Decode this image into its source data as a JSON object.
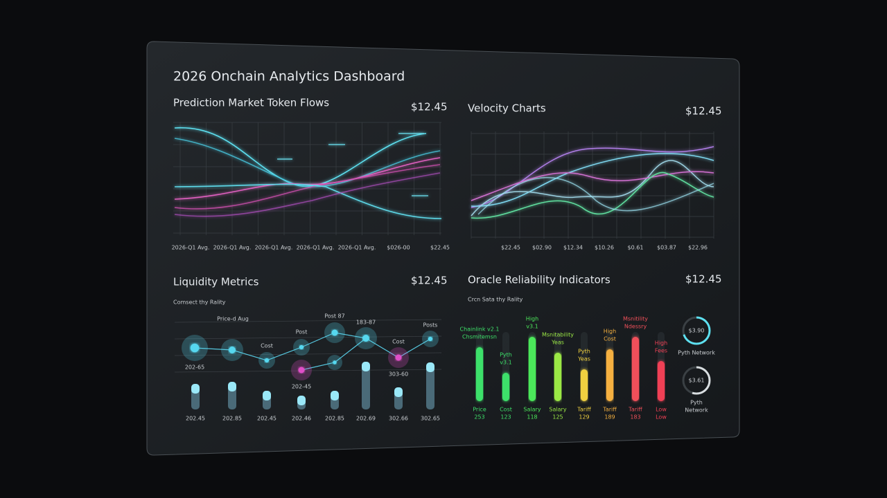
{
  "dashboard": {
    "title": "2026 Onchain Analytics Dashboard"
  },
  "flows": {
    "title": "Prediction Market Token Flows",
    "value": "$12.45",
    "x_labels": [
      "2026-Q1 Avg.",
      "2026-Q1 Avg.",
      "2026-Q1 Avg.",
      "2026-Q1 Avg.",
      "2026-Q1 Avg.",
      "$026-00",
      "$22.45"
    ]
  },
  "velocity": {
    "title": "Velocity Charts",
    "value": "$12.45",
    "x_labels": [
      "$22.45",
      "$02.90",
      "$12.34",
      "$10.26",
      "$0.61",
      "$03.87",
      "$22.96"
    ]
  },
  "liquidity": {
    "title": "Liquidity Metrics",
    "value": "$12.45",
    "subtitle": "Comsect thy Rality",
    "node_labels": [
      "Price-d Aug",
      "202-65",
      "Cost",
      "Post",
      "202-45",
      "Post 87",
      "183-87",
      "Cost",
      "303-60",
      "Posts"
    ],
    "bars": [
      {
        "label": "202.45",
        "level": 37
      },
      {
        "label": "202.85",
        "level": 40
      },
      {
        "label": "202.45",
        "level": 27
      },
      {
        "label": "202.46",
        "level": 20
      },
      {
        "label": "202.85",
        "level": 27
      },
      {
        "label": "202.69",
        "level": 69
      },
      {
        "label": "302.66",
        "level": 32
      },
      {
        "label": "302.65",
        "level": 68
      }
    ]
  },
  "oracle": {
    "title": "Oracle Reliability Indicators",
    "value": "$12.45",
    "subtitle": "Crcn Sata thy Rality",
    "bars": [
      {
        "top": [
          "Chainlink v2.1",
          "Chsmitemsn"
        ],
        "bottom": [
          "Price",
          "253"
        ],
        "level": 78,
        "color": "#3ee06a"
      },
      {
        "top": [
          "Pyth",
          "v3.1"
        ],
        "bottom": [
          "Cost",
          "123"
        ],
        "level": 41,
        "color": "#3ee06a"
      },
      {
        "top": [
          "High",
          "v3.1"
        ],
        "bottom": [
          "Salary",
          "118"
        ],
        "level": 93,
        "color": "#4be85a"
      },
      {
        "top": [
          "Msnitability",
          "Yeas"
        ],
        "bottom": [
          "Salary",
          "125"
        ],
        "level": 70,
        "color": "#9be845"
      },
      {
        "top": [
          "Pyth",
          "Yeas"
        ],
        "bottom": [
          "Tariff",
          "129"
        ],
        "level": 46,
        "color": "#f0d040"
      },
      {
        "top": [
          "High",
          "Cost"
        ],
        "bottom": [
          "Tariff",
          "189"
        ],
        "level": 75,
        "color": "#f5b040"
      },
      {
        "top": [
          "Msnitility",
          "Ndessry"
        ],
        "bottom": [
          "Tariff",
          "183"
        ],
        "level": 93,
        "color": "#f0505a"
      },
      {
        "top": [
          "High",
          "Fees"
        ],
        "bottom": [
          "Low",
          "Low"
        ],
        "level": 58,
        "color": "#f04055"
      }
    ],
    "gauges": [
      {
        "value": "$3.90",
        "label": [
          "Pyth Network"
        ],
        "level": 70
      },
      {
        "value": "$3.61",
        "label": [
          "Pyth",
          "Network"
        ],
        "level": 55
      }
    ]
  }
}
